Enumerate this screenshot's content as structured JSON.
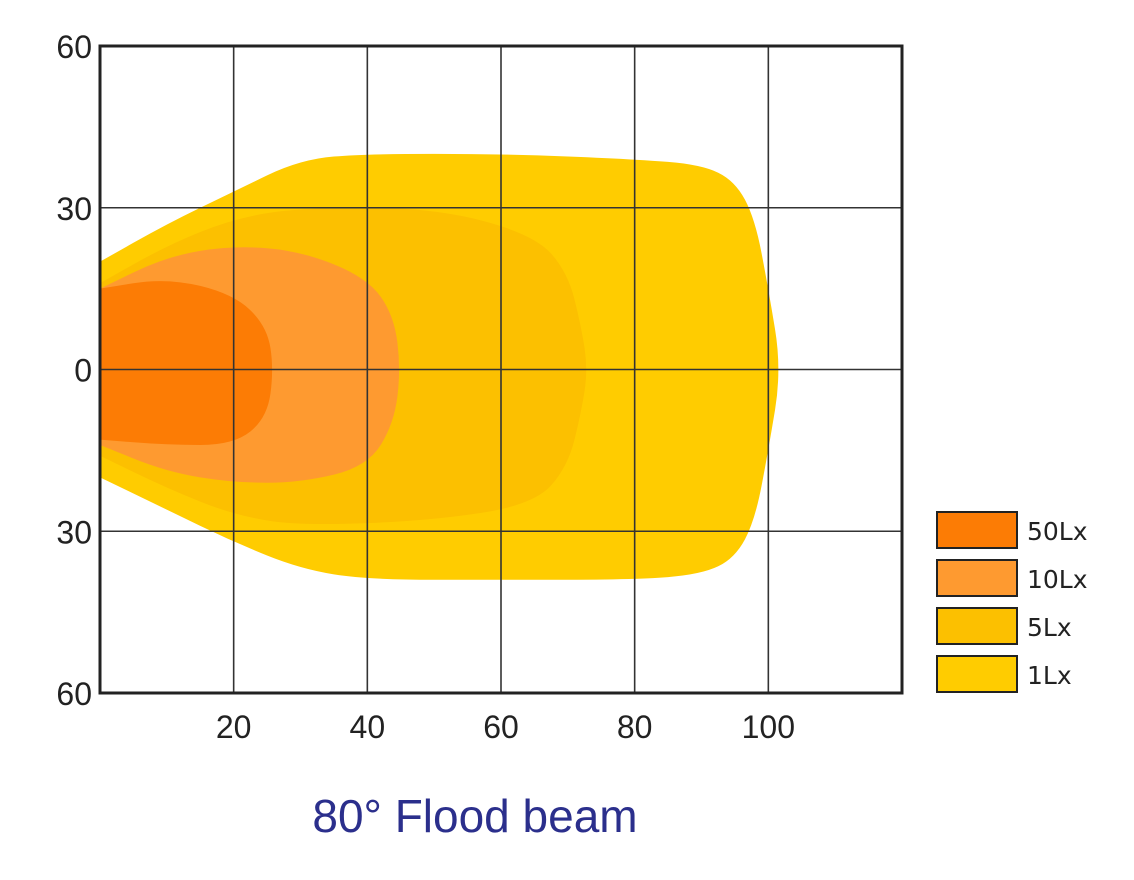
{
  "chart_data": {
    "type": "area",
    "title": "80° Flood beam",
    "xlabel": "",
    "ylabel": "",
    "xlim": [
      0,
      120
    ],
    "ylim": [
      -60,
      60
    ],
    "x_ticks": [
      {
        "value": 20,
        "label": "20"
      },
      {
        "value": 40,
        "label": "40"
      },
      {
        "value": 60,
        "label": "60"
      },
      {
        "value": 80,
        "label": "80"
      },
      {
        "value": 100,
        "label": "100"
      }
    ],
    "y_ticks": [
      {
        "value": 60,
        "label": "60"
      },
      {
        "value": 30,
        "label": "30"
      },
      {
        "value": 0,
        "label": "0"
      },
      {
        "value": -30,
        "label": "30"
      },
      {
        "value": -60,
        "label": "60"
      }
    ],
    "grid": true,
    "legend_position": "right",
    "series": [
      {
        "name": "1Lx",
        "color": "#ffcc00",
        "outline": [
          [
            0,
            20
          ],
          [
            10,
            27
          ],
          [
            20,
            33
          ],
          [
            30,
            39
          ],
          [
            40,
            40
          ],
          [
            60,
            40
          ],
          [
            80,
            39
          ],
          [
            90,
            38
          ],
          [
            95,
            35
          ],
          [
            98,
            28
          ],
          [
            100,
            15
          ],
          [
            102,
            0
          ],
          [
            100,
            -15
          ],
          [
            98,
            -28
          ],
          [
            95,
            -35
          ],
          [
            90,
            -38
          ],
          [
            80,
            -39
          ],
          [
            60,
            -39
          ],
          [
            40,
            -39
          ],
          [
            30,
            -37
          ],
          [
            20,
            -32
          ],
          [
            10,
            -26
          ],
          [
            0,
            -20
          ]
        ]
      },
      {
        "name": "5Lx",
        "color": "#fcc000",
        "outline": [
          [
            0,
            16
          ],
          [
            10,
            23
          ],
          [
            20,
            28
          ],
          [
            30,
            30
          ],
          [
            50,
            30
          ],
          [
            65,
            25
          ],
          [
            70,
            18
          ],
          [
            72,
            8
          ],
          [
            73,
            0
          ],
          [
            72,
            -8
          ],
          [
            70,
            -18
          ],
          [
            65,
            -25
          ],
          [
            50,
            -28
          ],
          [
            30,
            -29
          ],
          [
            20,
            -27
          ],
          [
            10,
            -22
          ],
          [
            0,
            -16
          ]
        ]
      },
      {
        "name": "10Lx",
        "color": "#fe9a30",
        "outline": [
          [
            0,
            15
          ],
          [
            10,
            21
          ],
          [
            20,
            23
          ],
          [
            30,
            22
          ],
          [
            40,
            17
          ],
          [
            44,
            10
          ],
          [
            45,
            0
          ],
          [
            44,
            -10
          ],
          [
            40,
            -18
          ],
          [
            30,
            -21
          ],
          [
            20,
            -21
          ],
          [
            10,
            -19
          ],
          [
            0,
            -14
          ]
        ]
      },
      {
        "name": "50Lx",
        "color": "#fc7c05",
        "outline": [
          [
            0,
            15
          ],
          [
            10,
            17
          ],
          [
            20,
            14
          ],
          [
            25,
            8
          ],
          [
            26,
            0
          ],
          [
            25,
            -9
          ],
          [
            20,
            -14
          ],
          [
            10,
            -14
          ],
          [
            0,
            -13
          ]
        ]
      }
    ]
  }
}
